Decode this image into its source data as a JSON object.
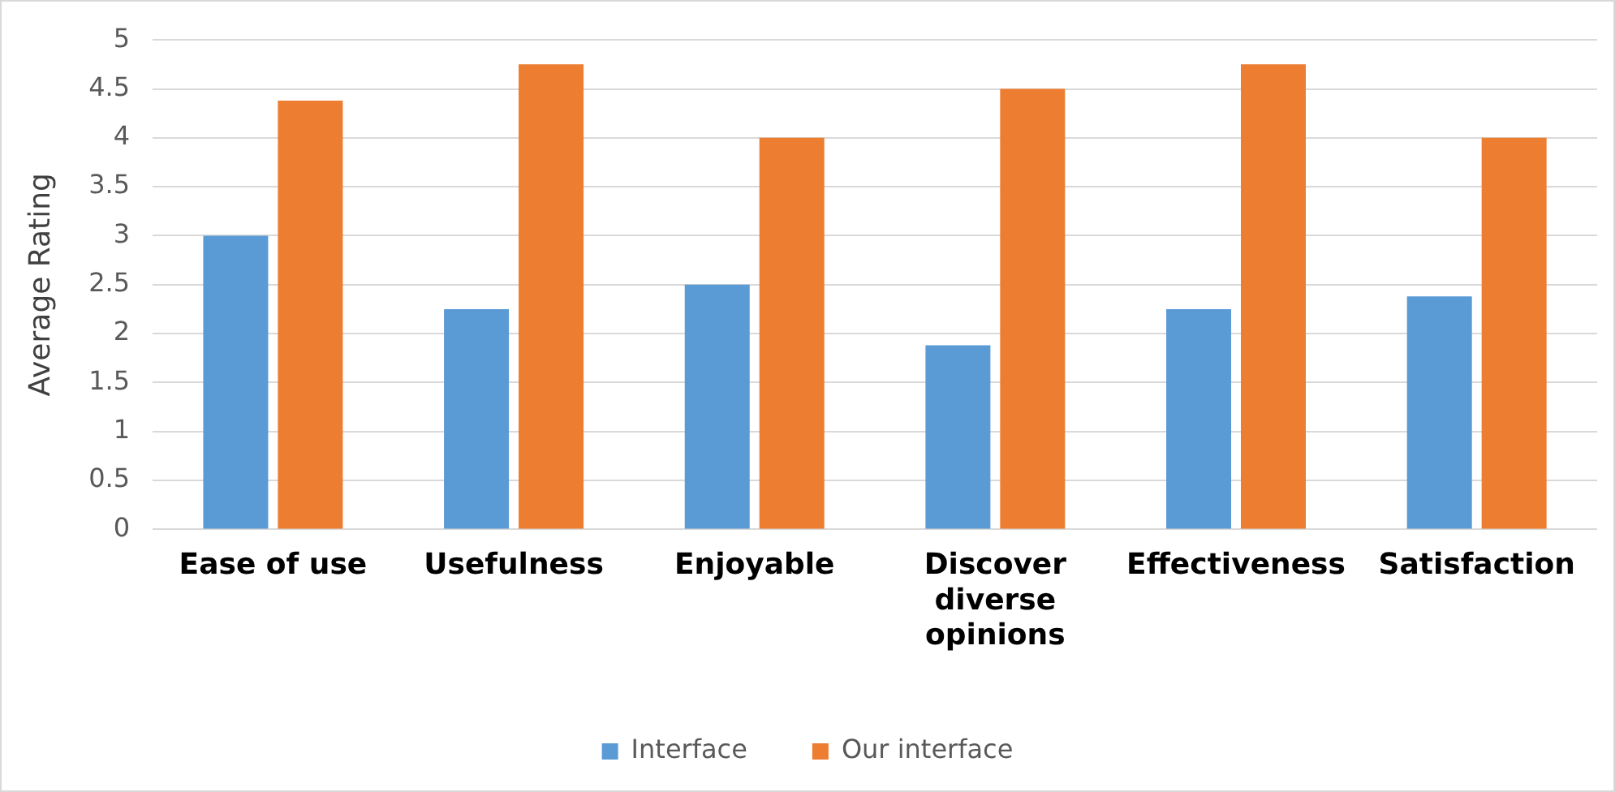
{
  "chart_data": {
    "type": "bar",
    "ylabel": "Average Rating",
    "categories": [
      "Ease of use",
      "Usefulness",
      "Enjoyable",
      "Discover diverse opinions",
      "Effectiveness",
      "Satisfaction"
    ],
    "series": [
      {
        "name": "Interface",
        "color": "#5b9bd5",
        "values": [
          3,
          2.25,
          2.5,
          1.88,
          2.25,
          2.38
        ]
      },
      {
        "name": "Our interface",
        "color": "#ed7d31",
        "values": [
          4.38,
          4.75,
          4,
          4.5,
          4.75,
          4
        ]
      }
    ],
    "ylim": [
      0,
      5
    ],
    "yticks": [
      0,
      0.5,
      1,
      1.5,
      2,
      2.5,
      3,
      3.5,
      4,
      4.5,
      5
    ],
    "grid": "y",
    "legend": "bottom"
  }
}
